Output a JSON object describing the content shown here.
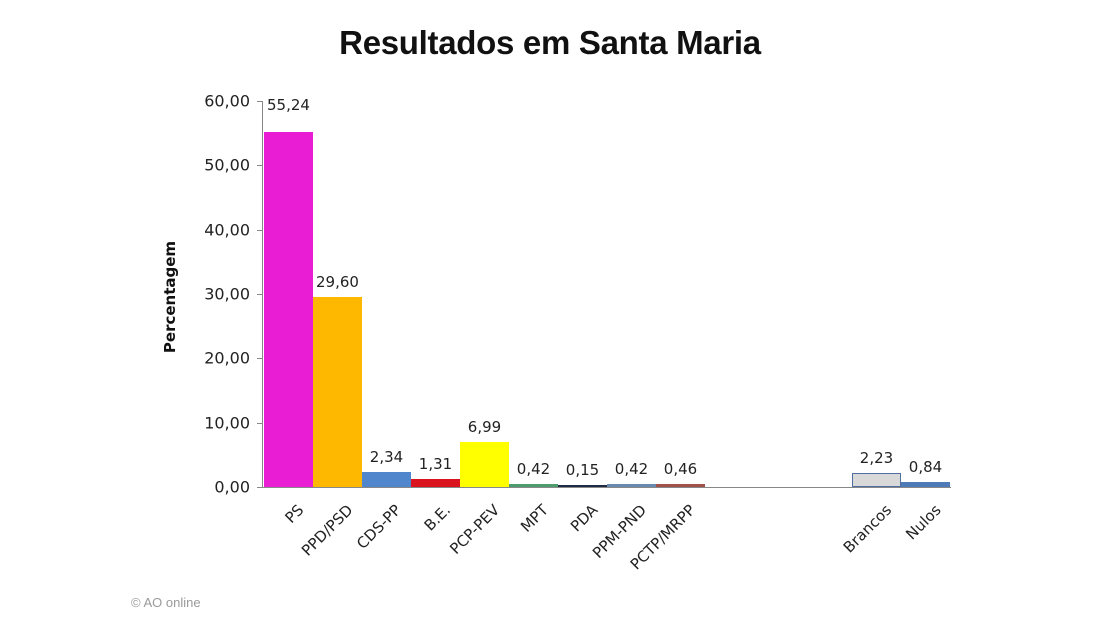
{
  "chart_data": {
    "type": "bar",
    "title": "Resultados em Santa Maria",
    "xlabel": "",
    "ylabel": "Percentagem",
    "ylim": [
      0,
      60
    ],
    "yticks": [
      "0,00",
      "10,00",
      "20,00",
      "30,00",
      "40,00",
      "50,00",
      "60,00"
    ],
    "grid": false,
    "legend": null,
    "categories": [
      "PS",
      "PPD/PSD",
      "CDS-PP",
      "B.E.",
      "PCP-PEV",
      "MPT",
      "PDA",
      "PPM-PND",
      "PCTP/MRPP",
      "",
      "",
      "",
      "Brancos",
      "Nulos"
    ],
    "values": [
      55.24,
      29.6,
      2.34,
      1.31,
      6.99,
      0.42,
      0.15,
      0.42,
      0.46,
      null,
      null,
      null,
      2.23,
      0.84
    ],
    "value_labels": [
      "55,24",
      "29,60",
      "2,34",
      "1,31",
      "6,99",
      "0,42",
      "0,15",
      "0,42",
      "0,46",
      "",
      "",
      "",
      "2,23",
      "0,84"
    ],
    "colors": [
      "#E91ED4",
      "#FFB800",
      "#4F86CC",
      "#D9141E",
      "#FFFF00",
      "#4E9C6E",
      "#1F2A44",
      "#6A8BB0",
      "#A0524A",
      "",
      "",
      "",
      "#D9D9D9",
      "#4F7AB8"
    ]
  },
  "credit": "© AO online"
}
